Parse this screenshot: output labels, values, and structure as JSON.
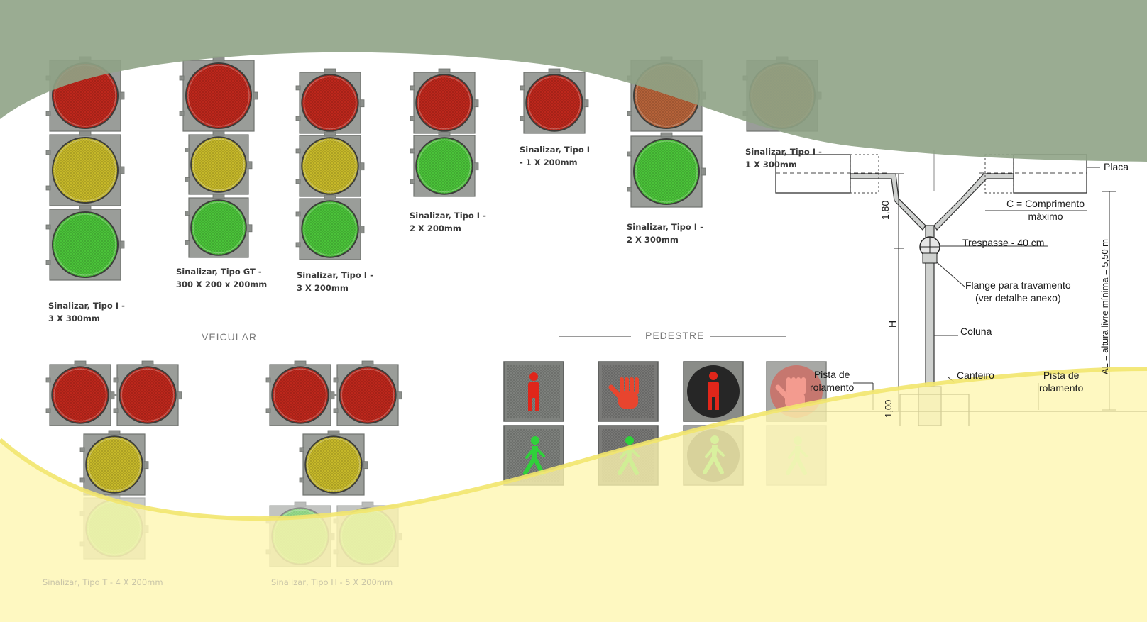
{
  "sections": {
    "vehicular": "VEICULAR",
    "pedestrian": "PEDESTRE"
  },
  "signals": {
    "tipo_i_3x300": "Sinalizar, Tipo I -\n3 X 300mm",
    "tipo_gt": "Sinalizar, Tipo GT -\n300 X 200 x 200mm",
    "tipo_i_3x200": "Sinalizar, Tipo I -\n3 X 200mm",
    "tipo_i_2x200": "Sinalizar, Tipo I -\n2 X 200mm",
    "tipo_i_1x200": "Sinalizar, Tipo I\n- 1 X 200mm",
    "tipo_i_2x300": "Sinalizar, Tipo I -\n2 X 300mm",
    "tipo_i_1x300": "Sinalizar, Tipo I -\n1 X 300mm",
    "tipo_t": "Sinalizar, Tipo T - 4 X 200mm",
    "tipo_h": "Sinalizar, Tipo H - 5 X 200mm"
  },
  "diagram": {
    "placa": "Placa",
    "comprimento": "C = Comprimento\nmáximo",
    "trespasse": "Trespasse - 40 cm",
    "flange": "Flange para travamento\n(ver detalhe anexo)",
    "coluna": "Coluna",
    "canteiro": "Canteiro",
    "pista_left": "Pista de\nrolamento",
    "pista_right": "Pista de\nrolamento",
    "dim_180": "1,80",
    "dim_h": "H",
    "dim_100": "1,00",
    "altura_livre": "AL = altura livre mínima = 5,50 m"
  },
  "colors": {
    "band_top": "#93a68a",
    "band_bottom": "#fef8b8",
    "housing": "#9a9d99",
    "red": "#c0281c",
    "yellow": "#c9bb2a",
    "green": "#4cc63a"
  }
}
